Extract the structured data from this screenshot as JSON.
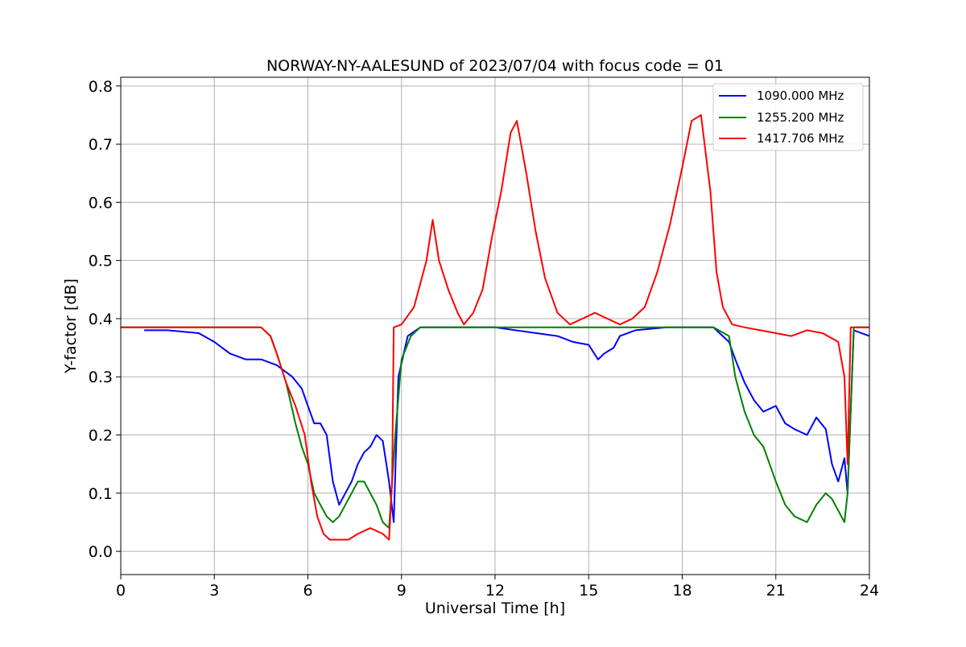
{
  "chart_data": {
    "type": "line",
    "title": "NORWAY-NY-AALESUND of 2023/07/04 with focus code = 01",
    "xlabel": "Universal Time [h]",
    "ylabel": "Y-factor [dB]",
    "xlim": [
      0,
      24
    ],
    "ylim": [
      -0.04,
      0.815
    ],
    "xticks": [
      0,
      3,
      6,
      9,
      12,
      15,
      18,
      21,
      24
    ],
    "xtick_labels": [
      "0",
      "3",
      "6",
      "9",
      "12",
      "15",
      "18",
      "21",
      "24"
    ],
    "yticks": [
      0.0,
      0.1,
      0.2,
      0.3,
      0.4,
      0.5,
      0.6,
      0.7,
      0.8
    ],
    "ytick_labels": [
      "0.0",
      "0.1",
      "0.2",
      "0.3",
      "0.4",
      "0.5",
      "0.6",
      "0.7",
      "0.8"
    ],
    "grid": true,
    "legend_position": "top-right",
    "series": [
      {
        "name": "1090.000 MHz",
        "color": "#0000ff",
        "x": [
          0.75,
          1.5,
          2.5,
          3.0,
          3.5,
          4.0,
          4.5,
          5.0,
          5.5,
          5.8,
          6.0,
          6.2,
          6.4,
          6.6,
          6.8,
          7.0,
          7.2,
          7.4,
          7.6,
          7.8,
          8.0,
          8.2,
          8.4,
          8.6,
          8.75,
          8.9,
          9.2,
          9.6,
          10.5,
          12.0,
          14.0,
          14.5,
          15.0,
          15.3,
          15.5,
          15.8,
          16.0,
          16.5,
          17.5,
          19.0,
          19.5,
          19.7,
          20.0,
          20.3,
          20.6,
          21.0,
          21.3,
          21.6,
          22.0,
          22.3,
          22.6,
          22.8,
          23.0,
          23.2,
          23.3,
          23.5,
          24.0
        ],
        "y": [
          0.38,
          0.38,
          0.375,
          0.36,
          0.34,
          0.33,
          0.33,
          0.32,
          0.3,
          0.28,
          0.25,
          0.22,
          0.22,
          0.2,
          0.12,
          0.08,
          0.1,
          0.12,
          0.15,
          0.17,
          0.18,
          0.2,
          0.19,
          0.12,
          0.05,
          0.3,
          0.37,
          0.385,
          0.385,
          0.385,
          0.37,
          0.36,
          0.355,
          0.33,
          0.34,
          0.35,
          0.37,
          0.38,
          0.385,
          0.385,
          0.36,
          0.33,
          0.29,
          0.26,
          0.24,
          0.25,
          0.22,
          0.21,
          0.2,
          0.23,
          0.21,
          0.15,
          0.12,
          0.16,
          0.1,
          0.38,
          0.37
        ]
      },
      {
        "name": "1255.200 MHz",
        "color": "#008000",
        "x": [
          0.0,
          4.5,
          4.8,
          5.0,
          5.3,
          5.6,
          5.8,
          6.0,
          6.2,
          6.4,
          6.6,
          6.8,
          7.0,
          7.2,
          7.4,
          7.6,
          7.8,
          8.0,
          8.2,
          8.4,
          8.6,
          8.8,
          9.0,
          9.3,
          9.6,
          10.0,
          19.0,
          19.5,
          19.7,
          20.0,
          20.3,
          20.6,
          21.0,
          21.3,
          21.6,
          22.0,
          22.3,
          22.6,
          22.8,
          23.0,
          23.2,
          23.3,
          23.5,
          24.0
        ],
        "y": [
          0.385,
          0.385,
          0.37,
          0.34,
          0.29,
          0.22,
          0.18,
          0.15,
          0.1,
          0.08,
          0.06,
          0.05,
          0.06,
          0.08,
          0.1,
          0.12,
          0.12,
          0.1,
          0.08,
          0.05,
          0.04,
          0.2,
          0.33,
          0.37,
          0.385,
          0.385,
          0.385,
          0.37,
          0.3,
          0.24,
          0.2,
          0.18,
          0.12,
          0.08,
          0.06,
          0.05,
          0.08,
          0.1,
          0.09,
          0.07,
          0.05,
          0.1,
          0.385,
          0.385
        ]
      },
      {
        "name": "1417.706 MHz",
        "color": "#ff0000",
        "x": [
          0.0,
          4.5,
          4.8,
          5.0,
          5.3,
          5.6,
          5.9,
          6.1,
          6.3,
          6.5,
          6.7,
          7.0,
          7.3,
          7.6,
          8.0,
          8.4,
          8.6,
          8.7,
          8.75,
          9.0,
          9.4,
          9.8,
          10.0,
          10.2,
          10.5,
          10.8,
          11.0,
          11.3,
          11.6,
          11.9,
          12.2,
          12.5,
          12.7,
          13.0,
          13.3,
          13.6,
          14.0,
          14.4,
          14.8,
          15.2,
          15.6,
          16.0,
          16.4,
          16.8,
          17.2,
          17.6,
          18.0,
          18.3,
          18.6,
          18.9,
          19.1,
          19.3,
          19.6,
          20.0,
          20.5,
          21.0,
          21.5,
          22.0,
          22.5,
          23.0,
          23.2,
          23.3,
          23.4,
          24.0
        ],
        "y": [
          0.385,
          0.385,
          0.37,
          0.34,
          0.29,
          0.25,
          0.2,
          0.12,
          0.06,
          0.03,
          0.02,
          0.02,
          0.02,
          0.03,
          0.04,
          0.03,
          0.02,
          0.12,
          0.385,
          0.39,
          0.42,
          0.5,
          0.57,
          0.5,
          0.45,
          0.41,
          0.39,
          0.41,
          0.45,
          0.54,
          0.62,
          0.72,
          0.74,
          0.65,
          0.55,
          0.47,
          0.41,
          0.39,
          0.4,
          0.41,
          0.4,
          0.39,
          0.4,
          0.42,
          0.48,
          0.56,
          0.66,
          0.74,
          0.75,
          0.62,
          0.48,
          0.42,
          0.39,
          0.385,
          0.38,
          0.375,
          0.37,
          0.38,
          0.375,
          0.36,
          0.3,
          0.15,
          0.385,
          0.385
        ]
      }
    ]
  }
}
